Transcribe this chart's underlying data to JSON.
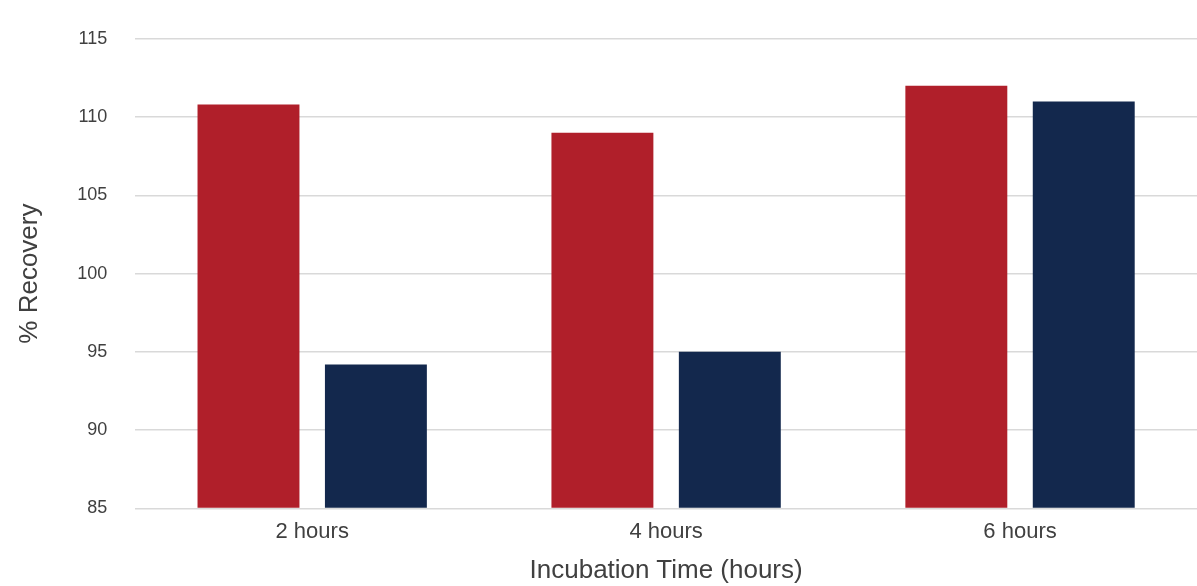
{
  "chart_data": {
    "type": "bar",
    "xlabel": "Incubation Time (hours)",
    "ylabel": "% Recovery",
    "categories": [
      "2 hours",
      "4 hours",
      "6 hours"
    ],
    "series": [
      {
        "color": "#b01f2a",
        "values": [
          110.8,
          109.0,
          112.0
        ]
      },
      {
        "color": "#13284d",
        "values": [
          94.2,
          95.0,
          111.0
        ]
      }
    ],
    "ylim": [
      85,
      115
    ],
    "yticks": [
      85,
      90,
      95,
      100,
      105,
      110,
      115
    ],
    "grid": "y",
    "legend": false
  }
}
